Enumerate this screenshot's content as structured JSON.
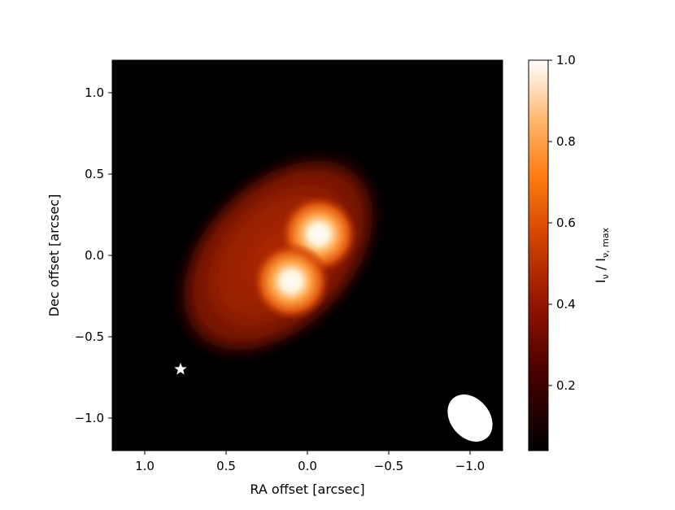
{
  "chart_data": {
    "type": "heatmap",
    "title": "",
    "xlabel": "RA offset [arcsec]",
    "ylabel": "Dec offset [arcsec]",
    "xlim": [
      1.2,
      -1.2
    ],
    "ylim": [
      -1.2,
      1.2
    ],
    "x_ticks": [
      {
        "value": 1.0,
        "label": "1.0"
      },
      {
        "value": 0.5,
        "label": "0.5"
      },
      {
        "value": 0.0,
        "label": "0.0"
      },
      {
        "value": -0.5,
        "label": "−0.5"
      },
      {
        "value": -1.0,
        "label": "−1.0"
      }
    ],
    "y_ticks": [
      {
        "value": 1.0,
        "label": "1.0"
      },
      {
        "value": 0.5,
        "label": "0.5"
      },
      {
        "value": 0.0,
        "label": "0.0"
      },
      {
        "value": -0.5,
        "label": "−0.5"
      },
      {
        "value": -1.0,
        "label": "−1.0"
      }
    ],
    "colormap": "gist_heat",
    "colorbar": {
      "label_main": "I",
      "label_sub1": "ν",
      "label_sep": " / I",
      "label_sub2": "ν, max",
      "range": [
        0.04,
        1.0
      ],
      "ticks": [
        {
          "value": 0.2,
          "label": "0.2"
        },
        {
          "value": 0.4,
          "label": "0.4"
        },
        {
          "value": 0.6,
          "label": "0.6"
        },
        {
          "value": 0.8,
          "label": "0.8"
        },
        {
          "value": 1.0,
          "label": "1.0"
        }
      ]
    },
    "components": [
      {
        "kind": "extended-disk",
        "center": [
          0.18,
          0.0
        ],
        "semi_major": 0.78,
        "semi_minor": 0.5,
        "pa_deg": 45,
        "peak": 0.36
      },
      {
        "kind": "compact-source",
        "center": [
          -0.07,
          0.13
        ],
        "sigma": 0.08,
        "peak": 1.0
      },
      {
        "kind": "compact-source",
        "center": [
          0.1,
          -0.16
        ],
        "sigma": 0.08,
        "peak": 1.0
      }
    ],
    "star_marker": {
      "x": 0.78,
      "y": -0.7,
      "color": "#ffffff"
    },
    "beam": {
      "center": [
        -1.0,
        -1.0
      ],
      "major": 0.32,
      "minor": 0.24,
      "pa_deg": 130,
      "color": "#ffffff"
    },
    "grid": false,
    "legend": "none"
  }
}
